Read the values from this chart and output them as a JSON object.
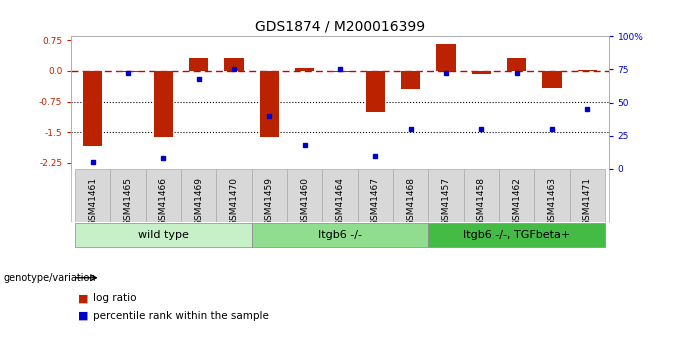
{
  "title": "GDS1874 / M200016399",
  "samples": [
    "GSM41461",
    "GSM41465",
    "GSM41466",
    "GSM41469",
    "GSM41470",
    "GSM41459",
    "GSM41460",
    "GSM41464",
    "GSM41467",
    "GSM41468",
    "GSM41457",
    "GSM41458",
    "GSM41462",
    "GSM41463",
    "GSM41471"
  ],
  "log_ratio": [
    -1.85,
    -0.02,
    -1.63,
    0.32,
    0.32,
    -1.62,
    0.07,
    -0.02,
    -1.0,
    -0.45,
    0.65,
    -0.07,
    0.32,
    -0.42,
    0.03
  ],
  "percentile_rank": [
    5,
    72,
    8,
    68,
    75,
    40,
    18,
    75,
    10,
    30,
    72,
    30,
    72,
    30,
    45
  ],
  "groups": [
    {
      "label": "wild type",
      "start": 0,
      "end": 4,
      "color": "#c8f0c8"
    },
    {
      "label": "Itgb6 -/-",
      "start": 5,
      "end": 9,
      "color": "#90dd90"
    },
    {
      "label": "Itgb6 -/-, TGFbeta+",
      "start": 10,
      "end": 14,
      "color": "#44bb44"
    }
  ],
  "ylim_left": [
    -2.4,
    0.85
  ],
  "ylim_right": [
    0,
    100
  ],
  "yticks_left": [
    0.75,
    0.0,
    -0.75,
    -1.5,
    -2.25
  ],
  "yticks_right": [
    100,
    75,
    50,
    25,
    0
  ],
  "hlines": [
    -0.75,
    -1.5
  ],
  "bar_color": "#bb2200",
  "point_color": "#0000cc",
  "dashed_line_color": "#cc0000",
  "bg_color": "#ffffff",
  "title_fontsize": 10,
  "tick_fontsize": 6.5,
  "label_fontsize": 8,
  "legend_fontsize": 7.5,
  "group_label_fontsize": 8
}
